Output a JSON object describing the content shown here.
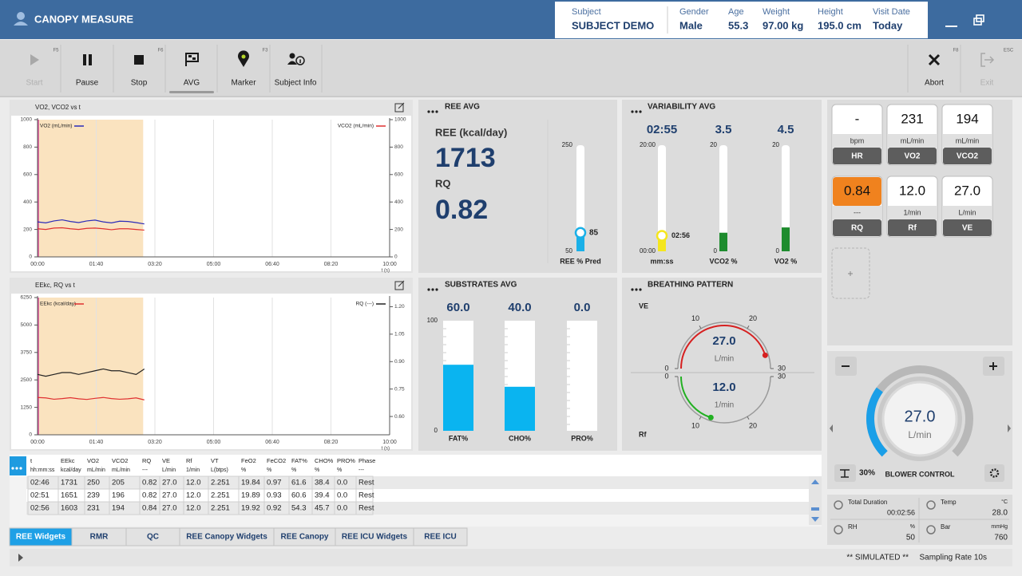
{
  "header": {
    "title": "CANOPY MEASURE",
    "fields": [
      {
        "label": "Subject",
        "value": "SUBJECT DEMO"
      },
      {
        "label": "Gender",
        "value": "Male"
      },
      {
        "label": "Age",
        "value": "55.3"
      },
      {
        "label": "Weight",
        "value": "97.00 kg"
      },
      {
        "label": "Height",
        "value": "195.0 cm"
      },
      {
        "label": "Visit Date",
        "value": "Today"
      }
    ]
  },
  "toolbar": {
    "buttons": [
      {
        "label": "Start",
        "key": "F5",
        "disabled": true
      },
      {
        "label": "Pause"
      },
      {
        "label": "Stop",
        "key": "F6"
      },
      {
        "label": "AVG"
      },
      {
        "label": "Marker",
        "key": "F3"
      },
      {
        "label": "Subject Info"
      },
      {
        "label": "Abort",
        "key": "F8"
      },
      {
        "label": "Exit",
        "key": "ESC",
        "disabled": true
      }
    ]
  },
  "charts": [
    {
      "type": "line",
      "title": "VO2, VCO2 vs t",
      "x": [
        0,
        14,
        28,
        42,
        56,
        70,
        84,
        98,
        112,
        126,
        140,
        154,
        168,
        182
      ],
      "xlim": [
        0,
        600
      ],
      "xticks": [
        {
          "value": 0,
          "label": "00:00"
        },
        {
          "value": 100,
          "label": "01:40"
        },
        {
          "value": 200,
          "label": "03:20"
        },
        {
          "value": 300,
          "label": "05:00"
        },
        {
          "value": 400,
          "label": "06:40"
        },
        {
          "value": 500,
          "label": "08:20"
        },
        {
          "value": 600,
          "label": "10:00"
        }
      ],
      "xlabel": "t (s)",
      "ylim": [
        0,
        1000
      ],
      "yticks": [
        0,
        200,
        400,
        600,
        800,
        1000
      ],
      "y2lim": [
        0,
        1000
      ],
      "y2ticks": [
        0,
        200,
        400,
        600,
        800,
        1000
      ],
      "shaded": [
        0,
        180
      ],
      "series": [
        {
          "name": "VO2 (mL/min)",
          "color": "#2b2bb8",
          "values": [
            255,
            248,
            262,
            270,
            258,
            250,
            262,
            268,
            255,
            248,
            260,
            258,
            250,
            240
          ]
        },
        {
          "name": "VCO2 (mL/min)",
          "color": "#e03030",
          "axis": "y2",
          "values": [
            205,
            200,
            210,
            212,
            205,
            200,
            208,
            210,
            205,
            198,
            205,
            205,
            200,
            195
          ]
        }
      ]
    },
    {
      "type": "line",
      "title": "EEkc, RQ vs t",
      "x": [
        0,
        14,
        28,
        42,
        56,
        70,
        84,
        98,
        112,
        126,
        140,
        154,
        168,
        182
      ],
      "xlim": [
        0,
        600
      ],
      "xticks": [
        {
          "value": 0,
          "label": "00:00"
        },
        {
          "value": 100,
          "label": "01:40"
        },
        {
          "value": 200,
          "label": "03:20"
        },
        {
          "value": 300,
          "label": "05:00"
        },
        {
          "value": 400,
          "label": "06:40"
        },
        {
          "value": 500,
          "label": "08:20"
        },
        {
          "value": 600,
          "label": "10:00"
        }
      ],
      "xlabel": "t (s)",
      "ylim": [
        0,
        6250
      ],
      "yticks": [
        0,
        1250,
        2500,
        3750,
        5000,
        6250
      ],
      "y2lim": [
        0.5,
        1.25
      ],
      "y2ticks": [
        {
          "value": 0.6,
          "label": "0.60"
        },
        0.75,
        {
          "value": 0.9,
          "label": "0.90"
        },
        1.05,
        {
          "value": 1.2,
          "label": "1.20"
        }
      ],
      "shaded": [
        0,
        180
      ],
      "series": [
        {
          "name": "EEkc (kcal/day)",
          "color": "#e03030",
          "values": [
            1700,
            1680,
            1620,
            1650,
            1690,
            1640,
            1610,
            1660,
            1700,
            1650,
            1620,
            1640,
            1680,
            1590
          ]
        },
        {
          "name": "RQ (---)",
          "color": "#222222",
          "axis": "y2",
          "values": [
            0.83,
            0.82,
            0.83,
            0.84,
            0.84,
            0.83,
            0.84,
            0.85,
            0.86,
            0.85,
            0.85,
            0.84,
            0.83,
            0.86
          ]
        }
      ]
    }
  ],
  "ree_avg": {
    "title": "REE AVG",
    "ree_label": "REE (kcal/day)",
    "ree": 1713,
    "rq_label": "RQ",
    "rq": 0.82,
    "gauge": {
      "max": 250,
      "min": 50,
      "value": 85,
      "label": "REE % Pred"
    }
  },
  "variability": {
    "title": "VARIABILITY AVG",
    "gauges": [
      {
        "value": "02:55",
        "max": "20:00",
        "min": "00:00",
        "marker": "02:56",
        "label": "mm:ss"
      },
      {
        "value": 3.5,
        "max": 20,
        "min": 0,
        "label": "VCO2 %"
      },
      {
        "value": 4.5,
        "max": 20,
        "min": 0,
        "label": "VO2 %"
      }
    ]
  },
  "substrates": {
    "title": "SUBSTRATES AVG",
    "max": 100,
    "min": 0,
    "bars": [
      {
        "value": "60.0",
        "label": "FAT%"
      },
      {
        "value": "40.0",
        "label": "CHO%"
      },
      {
        "value": "0.0",
        "label": "PRO%"
      }
    ]
  },
  "breathing": {
    "title": "BREATHING PATTERN",
    "gauges": [
      {
        "name": "VE",
        "value": "27.0",
        "unit": "L/min",
        "ticks": [
          0,
          10,
          20,
          30
        ],
        "color": "#d62020"
      },
      {
        "name": "Rf",
        "value": "12.0",
        "unit": "1/min",
        "ticks": [
          0,
          10,
          20,
          30
        ],
        "color": "#22b022"
      }
    ]
  },
  "tiles": [
    {
      "value": "-",
      "unit": "bpm",
      "label": "HR"
    },
    {
      "value": 231,
      "unit": "mL/min",
      "label": "VO2"
    },
    {
      "value": 194,
      "unit": "mL/min",
      "label": "VCO2"
    },
    {
      "value": "0.84",
      "unit": "---",
      "label": "RQ",
      "color": "#f0821e"
    },
    {
      "value": "12.0",
      "unit": "1/min",
      "label": "Rf"
    },
    {
      "value": "27.0",
      "unit": "L/min",
      "label": "VE"
    }
  ],
  "blower": {
    "value": "27.0",
    "unit": "L/min",
    "percent": {
      "value": 30,
      "label": "30%"
    },
    "label": "BLOWER CONTROL"
  },
  "environment": [
    {
      "label": "Total Duration",
      "value": "00:02:56"
    },
    {
      "label": "Temp",
      "unit": "°C",
      "value": "28.0"
    },
    {
      "label": "RH",
      "unit": "%",
      "value": "50"
    },
    {
      "label": "Bar",
      "unit": "mmHg",
      "value": "760"
    }
  ],
  "table": {
    "columns": [
      [
        "t",
        "hh:mm:ss"
      ],
      [
        "EEkc",
        "kcal/day"
      ],
      [
        "VO2",
        "mL/min"
      ],
      [
        "VCO2",
        "mL/min"
      ],
      [
        "RQ",
        "---"
      ],
      [
        "VE",
        "L/min"
      ],
      [
        "Rf",
        "1/min"
      ],
      [
        "VT",
        "L(btps)"
      ],
      [
        "FeO2",
        "%"
      ],
      [
        "FeCO2",
        "%"
      ],
      [
        "FAT%",
        "%"
      ],
      [
        "CHO%",
        "%"
      ],
      [
        "PRO%",
        "%"
      ],
      [
        "Phase",
        "---"
      ]
    ],
    "rows": [
      [
        "02:46",
        "1731",
        "250",
        "205",
        "0.82",
        "27.0",
        "12.0",
        "2.251",
        "19.84",
        "0.97",
        "61.6",
        "38.4",
        "0.0",
        "Rest"
      ],
      [
        "02:51",
        "1651",
        "239",
        "196",
        "0.82",
        "27.0",
        "12.0",
        "2.251",
        "19.89",
        "0.93",
        "60.6",
        "39.4",
        "0.0",
        "Rest"
      ],
      [
        "02:56",
        "1603",
        "231",
        "194",
        "0.84",
        "27.0",
        "12.0",
        "2.251",
        "19.92",
        "0.92",
        "54.3",
        "45.7",
        "0.0",
        "Rest"
      ]
    ]
  },
  "tabs": {
    "items": [
      "REE Widgets",
      "RMR",
      "QC",
      "REE Canopy Widgets",
      "REE Canopy",
      "REE ICU Widgets",
      "REE ICU"
    ],
    "active": 0
  },
  "status": [
    "** SIMULATED **",
    "Sampling Rate 10s"
  ]
}
